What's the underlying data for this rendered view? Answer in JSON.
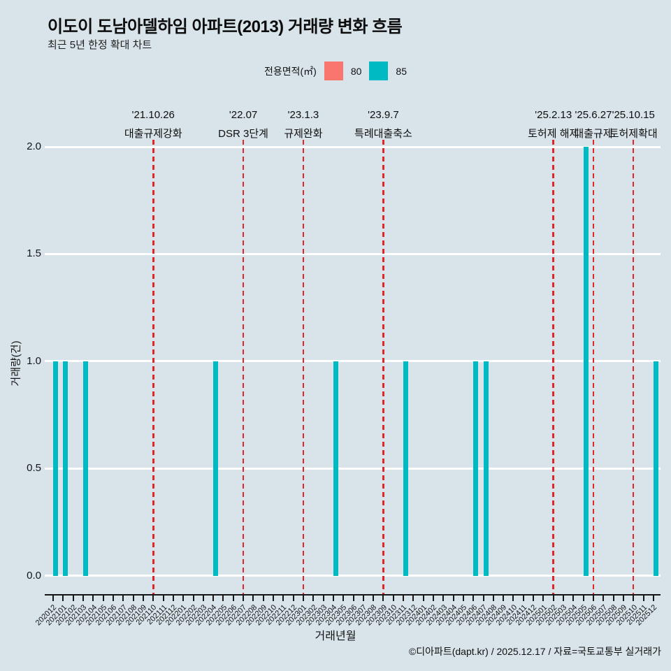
{
  "page": {
    "background": "#d8e3ea"
  },
  "header": {
    "title": "이도이 도남아델하임 아파트(2013) 거래량 변화 흐름",
    "subtitle": "최근 5년 한정 확대 차트"
  },
  "legend": {
    "title": "전용면적(㎡)",
    "items": [
      {
        "label": "80",
        "color": "#f8766d"
      },
      {
        "label": "85",
        "color": "#00bac3"
      }
    ]
  },
  "footer": {
    "credit": "©디아파트(dapt.kr) / 2025.12.17 / 자료=국토교통부 실거래가"
  },
  "chart_data": {
    "type": "bar",
    "title": "이도이 도남아델하임 아파트(2013) 거래량 변화 흐름",
    "subtitle": "최근 5년 한정 확대 차트",
    "xlabel": "거래년월",
    "ylabel": "거래량(건)",
    "ylim": [
      0,
      2
    ],
    "grid": true,
    "legend_position": "top",
    "gridline_color": "#ffffff",
    "event_line_color": "#e0262b",
    "yticks": [
      {
        "value": 0.0,
        "label": "0.0"
      },
      {
        "value": 0.5,
        "label": "0.5"
      },
      {
        "value": 1.0,
        "label": "1.0"
      },
      {
        "value": 1.5,
        "label": "1.5"
      },
      {
        "value": 2.0,
        "label": "2.0"
      }
    ],
    "categories": [
      "202012",
      "202101",
      "202102",
      "202103",
      "202104",
      "202105",
      "202106",
      "202107",
      "202108",
      "202109",
      "202110",
      "202111",
      "202112",
      "202201",
      "202202",
      "202203",
      "202204",
      "202205",
      "202206",
      "202207",
      "202208",
      "202209",
      "202210",
      "202211",
      "202212",
      "202301",
      "202302",
      "202303",
      "202304",
      "202305",
      "202306",
      "202307",
      "202308",
      "202309",
      "202310",
      "202311",
      "202312",
      "202401",
      "202402",
      "202403",
      "202404",
      "202405",
      "202406",
      "202407",
      "202408",
      "202409",
      "202410",
      "202411",
      "202412",
      "202501",
      "202502",
      "202503",
      "202504",
      "202505",
      "202506",
      "202507",
      "202508",
      "202509",
      "202510",
      "202511",
      "202512"
    ],
    "series": [
      {
        "name": "80",
        "color": "#f8766d",
        "values": [
          0,
          0,
          0,
          0,
          0,
          0,
          0,
          0,
          0,
          0,
          0,
          0,
          0,
          0,
          0,
          0,
          0,
          0,
          0,
          0,
          0,
          0,
          0,
          0,
          0,
          0,
          0,
          0,
          0,
          0,
          0,
          0,
          0,
          0,
          0,
          0,
          0,
          0,
          0,
          0,
          0,
          0,
          0,
          0,
          0,
          0,
          0,
          0,
          0,
          0,
          0,
          0,
          0,
          0,
          0,
          0,
          0,
          0,
          0,
          0,
          0
        ]
      },
      {
        "name": "85",
        "color": "#00bac3",
        "values": [
          1,
          1,
          0,
          1,
          0,
          0,
          0,
          0,
          0,
          0,
          0,
          0,
          0,
          0,
          0,
          0,
          1,
          0,
          0,
          0,
          0,
          0,
          0,
          0,
          0,
          0,
          0,
          0,
          1,
          0,
          0,
          0,
          0,
          0,
          0,
          1,
          0,
          0,
          0,
          0,
          0,
          0,
          1,
          1,
          0,
          0,
          0,
          0,
          0,
          0,
          0,
          0,
          0,
          2,
          0,
          0,
          0,
          0,
          0,
          0,
          1
        ]
      }
    ],
    "events": [
      {
        "date": "'21.10.26",
        "label": "대출규제강화",
        "month": "202110"
      },
      {
        "date": "'22.07",
        "label": "DSR 3단계",
        "month": "202207"
      },
      {
        "date": "'23.1.3",
        "label": "규제완화",
        "month": "202301"
      },
      {
        "date": "'23.9.7",
        "label": "특례대출축소",
        "month": "202309"
      },
      {
        "date": "'25.2.13",
        "label": "토허제 해제",
        "month": "202502"
      },
      {
        "date": "'25.6.27",
        "label": "대출규제",
        "month": "202506"
      },
      {
        "date": "'25.10.15",
        "label": "토허제확대",
        "month": "202510"
      }
    ]
  }
}
